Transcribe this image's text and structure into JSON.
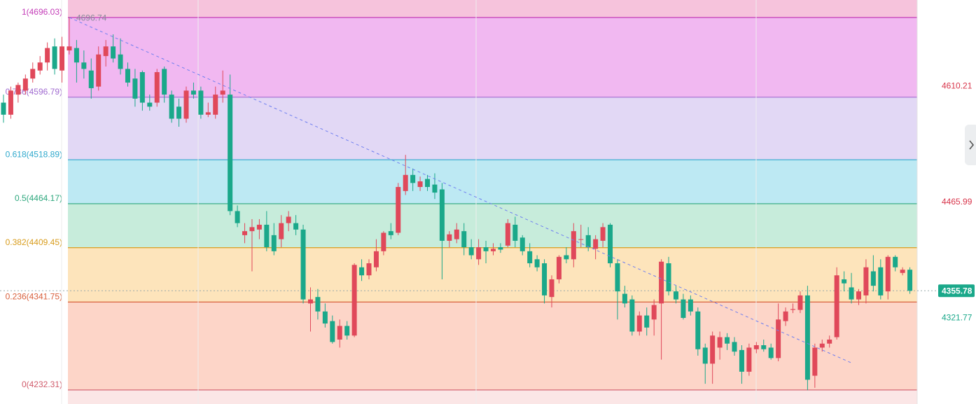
{
  "chart_data": {
    "type": "candlestick",
    "ylim": [
      4214.8,
      4717.8
    ],
    "up_color": "#e0485a",
    "down_color": "#1aa88a",
    "open": [
      4590,
      4575,
      4600,
      4605,
      4620,
      4630,
      4640,
      4660,
      4630,
      4655,
      4658,
      4640,
      4630,
      4610,
      4648,
      4660,
      4650,
      4632,
      4620,
      4628,
      4590,
      4590,
      4632,
      4600,
      4585,
      4570,
      4605,
      4605,
      4575,
      4575,
      4600,
      4600,
      4455,
      4425,
      4430,
      4432,
      4438,
      4425,
      4420,
      4440,
      4440,
      4432,
      4340,
      4348,
      4330,
      4318,
      4295,
      4312,
      4300,
      4385,
      4375,
      4385,
      4405,
      4430,
      4428,
      4480,
      4500,
      4485,
      4495,
      4488,
      4482,
      4418,
      4420,
      4430,
      4410,
      4395,
      4410,
      4405,
      4410,
      4412,
      4438,
      4422,
      4405,
      4395,
      4390,
      4348,
      4370,
      4400,
      4395,
      4420,
      4425,
      4408,
      4418,
      4438,
      4390,
      4352,
      4345,
      4305,
      4325,
      4320,
      4340,
      4390,
      4355,
      4345,
      4345,
      4330,
      4285,
      4265,
      4285,
      4298,
      4292,
      4282,
      4255,
      4283,
      4288,
      4285,
      4272,
      4318,
      4332,
      4332,
      4350,
      4250,
      4285,
      4290,
      4298,
      4370,
      4360,
      4345,
      4350,
      4380,
      4385,
      4355,
      4398,
      4378,
      4382
    ],
    "high": [
      4600,
      4610,
      4615,
      4625,
      4640,
      4648,
      4665,
      4670,
      4672,
      4696.74,
      4668,
      4655,
      4645,
      4660,
      4668,
      4675,
      4670,
      4640,
      4632,
      4630,
      4600,
      4632,
      4635,
      4605,
      4595,
      4610,
      4615,
      4610,
      4590,
      4610,
      4630,
      4625,
      4462,
      4440,
      4445,
      4445,
      4455,
      4440,
      4450,
      4455,
      4450,
      4438,
      4360,
      4358,
      4340,
      4325,
      4320,
      4318,
      4390,
      4395,
      4395,
      4420,
      4430,
      4440,
      4490,
      4525,
      4508,
      4498,
      4500,
      4502,
      4490,
      4430,
      4440,
      4440,
      4420,
      4420,
      4418,
      4415,
      4415,
      4445,
      4448,
      4425,
      4415,
      4400,
      4395,
      4375,
      4400,
      4410,
      4440,
      4438,
      4435,
      4425,
      4440,
      4440,
      4395,
      4362,
      4350,
      4330,
      4335,
      4345,
      4395,
      4398,
      4362,
      4352,
      4350,
      4335,
      4290,
      4305,
      4305,
      4303,
      4298,
      4288,
      4290,
      4292,
      4295,
      4290,
      4340,
      4335,
      4340,
      4355,
      4362,
      4290,
      4295,
      4300,
      4385,
      4380,
      4378,
      4358,
      4395,
      4400,
      4395,
      4400,
      4400,
      4385,
      4385
    ],
    "low": [
      4565,
      4570,
      4590,
      4600,
      4615,
      4625,
      4630,
      4625,
      4615,
      4650,
      4615,
      4620,
      4595,
      4605,
      4635,
      4640,
      4625,
      4610,
      4585,
      4580,
      4580,
      4585,
      4590,
      4565,
      4560,
      4565,
      4595,
      4570,
      4572,
      4570,
      4590,
      4450,
      4435,
      4415,
      4380,
      4420,
      4405,
      4400,
      4410,
      4430,
      4425,
      4340,
      4305,
      4320,
      4310,
      4290,
      4285,
      4295,
      4298,
      4368,
      4370,
      4380,
      4400,
      4420,
      4425,
      4475,
      4480,
      4480,
      4480,
      4470,
      4370,
      4410,
      4415,
      4400,
      4395,
      4388,
      4390,
      4400,
      4403,
      4410,
      4410,
      4400,
      4385,
      4380,
      4340,
      4335,
      4365,
      4390,
      4385,
      4410,
      4405,
      4395,
      4410,
      4385,
      4320,
      4335,
      4300,
      4300,
      4300,
      4300,
      4270,
      4350,
      4340,
      4320,
      4325,
      4275,
      4240,
      4240,
      4270,
      4282,
      4275,
      4240,
      4250,
      4278,
      4280,
      4270,
      4268,
      4312,
      4328,
      4328,
      4232,
      4235,
      4280,
      4285,
      4295,
      4355,
      4340,
      4338,
      4340,
      4355,
      4345,
      4345,
      4380,
      4375,
      4352
    ],
    "close": [
      4575,
      4605,
      4612,
      4620,
      4632,
      4640,
      4658,
      4632,
      4660,
      4660,
      4640,
      4632,
      4608,
      4650,
      4660,
      4645,
      4632,
      4615,
      4595,
      4590,
      4585,
      4628,
      4600,
      4570,
      4570,
      4605,
      4600,
      4575,
      4578,
      4600,
      4605,
      4455,
      4440,
      4430,
      4435,
      4438,
      4410,
      4405,
      4440,
      4448,
      4432,
      4345,
      4345,
      4330,
      4315,
      4292,
      4312,
      4300,
      4388,
      4375,
      4390,
      4405,
      4428,
      4425,
      4485,
      4500,
      4490,
      4492,
      4485,
      4478,
      4418,
      4426,
      4432,
      4410,
      4400,
      4410,
      4405,
      4408,
      4407,
      4440,
      4418,
      4405,
      4390,
      4385,
      4350,
      4370,
      4398,
      4395,
      4430,
      4420,
      4410,
      4420,
      4435,
      4390,
      4355,
      4340,
      4305,
      4325,
      4310,
      4338,
      4392,
      4355,
      4345,
      4322,
      4330,
      4283,
      4265,
      4300,
      4298,
      4290,
      4280,
      4255,
      4285,
      4288,
      4283,
      4272,
      4320,
      4330,
      4333,
      4350,
      4245,
      4285,
      4290,
      4295,
      4375,
      4365,
      4345,
      4355,
      4385,
      4362,
      4350,
      4398,
      4385,
      4382,
      4355.78
    ],
    "top_band_color": "#f6c3dc",
    "fib_levels": [
      {
        "value": 4696.03,
        "label": "1(4696.03)",
        "color": "#c43cb8",
        "fill": "#f1b8f1"
      },
      {
        "value": 4596.79,
        "label": "0.786(4596.79)",
        "color": "#a06ad0",
        "fill": "#e2d8f5"
      },
      {
        "value": 4518.89,
        "label": "0.618(4518.89)",
        "color": "#2ea8cc",
        "fill": "#bde9f3"
      },
      {
        "value": 4464.17,
        "label": "0.5(4464.17)",
        "color": "#2fa87e",
        "fill": "#c7ecdb"
      },
      {
        "value": 4409.45,
        "label": "0.382(4409.45)",
        "color": "#d89c1c",
        "fill": "#fde4bb"
      },
      {
        "value": 4341.75,
        "label": "0.236(4341.75)",
        "color": "#d8603c",
        "fill": "#fdd5c8"
      },
      {
        "value": 4232.31,
        "label": "0(4232.31)",
        "color": "#d05a6a",
        "fill": "#fbe6e6"
      }
    ],
    "high_label": 4696.74,
    "trend_line": {
      "x": [
        9,
        116
      ],
      "y": [
        4696.03,
        4266
      ]
    },
    "price_labels": [
      {
        "value": 4610.21,
        "color": "#d8344a"
      },
      {
        "value": 4465.99,
        "color": "#d8344a"
      },
      {
        "value": 4321.77,
        "color": "#1aa88a"
      }
    ],
    "last_price": 4355.78
  }
}
